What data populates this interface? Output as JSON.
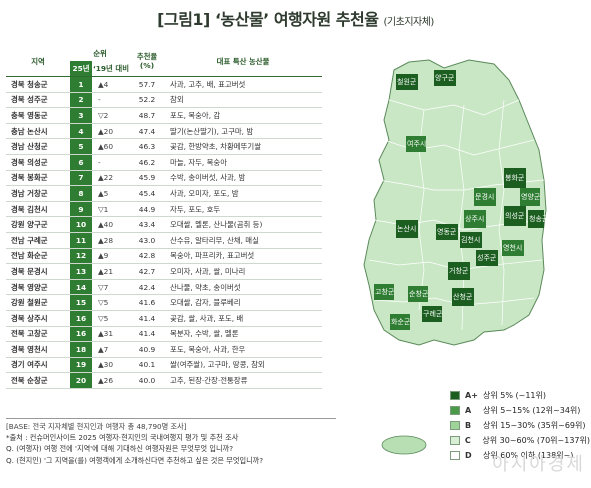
{
  "title": "[그림1] ‘농산물’ 여행자원 추천율",
  "subtitle": "(기초지자체)",
  "table_headers": {
    "region": "지역",
    "rank": "순위",
    "rank_25": "25년",
    "rank_change": "‘19년 대비",
    "score": "추천율 (%)",
    "products": "대표 특산 농산물"
  },
  "rows": [
    {
      "region": "경북 청송군",
      "rank": "1",
      "change": "▲4",
      "score": "57.7",
      "products": "사과, 고추, 배, 표고버섯"
    },
    {
      "region": "경북 성주군",
      "rank": "2",
      "change": "-",
      "score": "52.2",
      "products": "참외"
    },
    {
      "region": "충북 영동군",
      "rank": "3",
      "change": "▽2",
      "score": "48.7",
      "products": "포도, 복숭아, 감"
    },
    {
      "region": "충남 논산시",
      "rank": "4",
      "change": "▲20",
      "score": "47.4",
      "products": "딸기(논산딸기), 고구마, 밤"
    },
    {
      "region": "경남 산청군",
      "rank": "5",
      "change": "▲60",
      "score": "46.3",
      "products": "곶감, 한방약초, 차황메뚜기쌀"
    },
    {
      "region": "경북 의성군",
      "rank": "6",
      "change": "-",
      "score": "46.2",
      "products": "마늘, 자두, 복숭아"
    },
    {
      "region": "경북 봉화군",
      "rank": "7",
      "change": "▲22",
      "score": "45.9",
      "products": "수박, 송이버섯, 사과, 밤"
    },
    {
      "region": "경남 거창군",
      "rank": "8",
      "change": "▲5",
      "score": "45.4",
      "products": "사과, 오미자, 포도, 밤"
    },
    {
      "region": "경북 김천시",
      "rank": "9",
      "change": "▽1",
      "score": "44.9",
      "products": "자두, 포도, 호두"
    },
    {
      "region": "강원 양구군",
      "rank": "10",
      "change": "▲40",
      "score": "43.4",
      "products": "오대쌀, 멜론, 산나물(곰취 등)"
    },
    {
      "region": "전남 구례군",
      "rank": "11",
      "change": "▲28",
      "score": "43.0",
      "products": "산수유, 알타리무, 산채, 매실"
    },
    {
      "region": "전남 화순군",
      "rank": "12",
      "change": "▲9",
      "score": "42.8",
      "products": "복숭아, 파프리카, 표고버섯"
    },
    {
      "region": "경북 문경시",
      "rank": "13",
      "change": "▲21",
      "score": "42.7",
      "products": "오미자, 사과, 쌀, 미나리"
    },
    {
      "region": "경북 영양군",
      "rank": "14",
      "change": "▽7",
      "score": "42.4",
      "products": "산나물, 약초, 송이버섯"
    },
    {
      "region": "강원 철원군",
      "rank": "15",
      "change": "▽5",
      "score": "41.6",
      "products": "오대쌀, 감자, 블루베리"
    },
    {
      "region": "경북 상주시",
      "rank": "16",
      "change": "▽5",
      "score": "41.4",
      "products": "곶감, 쌀, 사과, 포도, 배"
    },
    {
      "region": "전북 고창군",
      "rank": "16",
      "change": "▲31",
      "score": "41.4",
      "products": "복분자, 수박, 쌀, 멜론"
    },
    {
      "region": "경북 영천시",
      "rank": "18",
      "change": "▲7",
      "score": "40.9",
      "products": "포도, 복숭아, 사과, 한우"
    },
    {
      "region": "경기 여주시",
      "rank": "19",
      "change": "▲30",
      "score": "40.1",
      "products": "쌀(여주쌀), 고구마, 땅콩, 참외"
    },
    {
      "region": "전북 순창군",
      "rank": "20",
      "change": "▲26",
      "score": "40.0",
      "products": "고추, 된장·간장·전통장류"
    }
  ],
  "notes": [
    "[BASE: 전국 지자체별 현지인과 여행자 총 48,790명 조사]",
    "*출처 : 컨슈머인사이트 2025 여행자·현지인의 국내여행지 평가 및 추천 조사",
    "Q. (여행자) 여행 전에 '지역'에 대해 기대하신 여행자원은 무엇무엇 입니까?",
    "Q. (현지인) '그 지역을(를) 여행객에게 소개하신다면 추천하고 싶은 것은 무엇입니까?"
  ],
  "map_labels": [
    "철원군",
    "양구군",
    "여주시",
    "봉화군",
    "영양군",
    "문경시",
    "의성군",
    "청송군",
    "상주시",
    "성주군",
    "논산시",
    "영동군",
    "김천시",
    "영천시",
    "거창군",
    "고창군",
    "순창군",
    "산청군",
    "구례군",
    "화순군"
  ],
  "legend": [
    {
      "grade": "A+",
      "desc": "상위 5% (~11위)",
      "color": "#1b5e20"
    },
    {
      "grade": "A",
      "desc": "상위 5~15% (12위~34위)",
      "color": "#4a9a4a"
    },
    {
      "grade": "B",
      "desc": "상위 15~30% (35위~69위)",
      "color": "#9ed39a"
    },
    {
      "grade": "C",
      "desc": "상위 30~60% (70위~137위)",
      "color": "#d8efd6"
    },
    {
      "grade": "D",
      "desc": "상위 60% 이하 (138위~)",
      "color": "#ffffff"
    }
  ],
  "watermark": "아시아경제",
  "chart_data": {
    "type": "table",
    "title": "[그림1] ‘농산물’ 여행자원 추천율",
    "subtitle": "(기초지자체)",
    "columns": [
      "지역",
      "25년 순위",
      "‘19년 대비",
      "추천율 (%)",
      "대표 특산 농산물"
    ],
    "categories": [
      "경북 청송군",
      "경북 성주군",
      "충북 영동군",
      "충남 논산시",
      "경남 산청군",
      "경북 의성군",
      "경북 봉화군",
      "경남 거창군",
      "경북 김천시",
      "강원 양구군",
      "전남 구례군",
      "전남 화순군",
      "경북 문경시",
      "경북 영양군",
      "강원 철원군",
      "경북 상주시",
      "전북 고창군",
      "경북 영천시",
      "경기 여주시",
      "전북 순창군"
    ],
    "values": [
      57.7,
      52.2,
      48.7,
      47.4,
      46.3,
      46.2,
      45.9,
      45.4,
      44.9,
      43.4,
      43.0,
      42.8,
      42.7,
      42.4,
      41.6,
      41.4,
      41.4,
      40.9,
      40.1,
      40.0
    ]
  }
}
